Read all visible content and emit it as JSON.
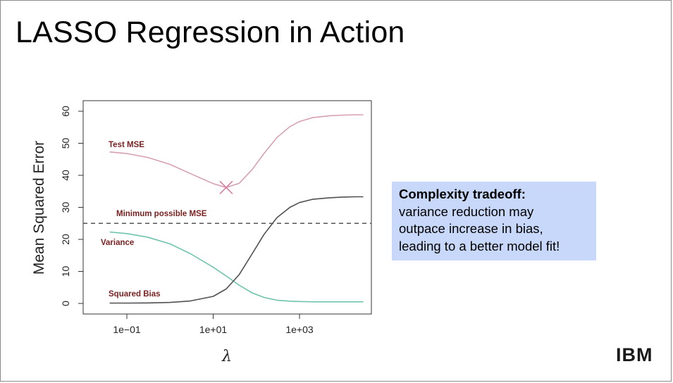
{
  "slide": {
    "title": "LASSO Regression in Action",
    "callout_heading": "Complexity tradeoff:",
    "callout_lines": [
      "variance reduction may",
      "outpace increase in bias,",
      "leading to a better model fit!"
    ],
    "logo": "IBM"
  },
  "chart_data": {
    "type": "line",
    "xlabel": "λ",
    "ylabel": "Mean Squared Error",
    "x_scale": "log",
    "xlim": [
      0.025,
      50000
    ],
    "ylim": [
      0,
      60
    ],
    "x_ticks": [
      0.1,
      10,
      1000
    ],
    "x_tick_labels": [
      "1e−01",
      "1e+01",
      "1e+03"
    ],
    "y_ticks": [
      0,
      10,
      20,
      30,
      40,
      50,
      60
    ],
    "y_tick_labels": [
      "0",
      "10",
      "20",
      "30",
      "40",
      "50",
      "60"
    ],
    "grid": false,
    "x": [
      0.04,
      0.1,
      0.3,
      1,
      3,
      10,
      20,
      40,
      80,
      150,
      300,
      600,
      1000,
      2000,
      5000,
      10000,
      20000,
      30000
    ],
    "series": [
      {
        "name": "Test MSE",
        "color": "#d79fb4",
        "values": [
          47.3,
          46.8,
          45.6,
          43.4,
          40.5,
          37.4,
          36.2,
          37.5,
          41.8,
          46.8,
          51.8,
          55.2,
          56.8,
          58.0,
          58.6,
          58.8,
          58.9,
          58.9
        ]
      },
      {
        "name": "Variance",
        "color": "#6ec3ad",
        "values": [
          22.3,
          21.8,
          20.7,
          18.6,
          15.5,
          11.3,
          8.6,
          5.7,
          3.3,
          1.9,
          1.0,
          0.7,
          0.6,
          0.5,
          0.5,
          0.5,
          0.5,
          0.5
        ]
      },
      {
        "name": "Squared Bias",
        "color": "#505050",
        "values": [
          0.1,
          0.1,
          0.15,
          0.3,
          0.8,
          2.2,
          4.5,
          9.0,
          15.5,
          21.5,
          26.8,
          30.0,
          31.5,
          32.5,
          33.0,
          33.2,
          33.3,
          33.3
        ]
      }
    ],
    "reference_line": {
      "label": "Minimum possible MSE",
      "y": 25,
      "style": "dashed",
      "color": "#555555"
    },
    "minimum_marker": {
      "x": 20,
      "y": 36.2,
      "color": "#d77f9f"
    },
    "annotation_color": "#7a1f1f"
  }
}
